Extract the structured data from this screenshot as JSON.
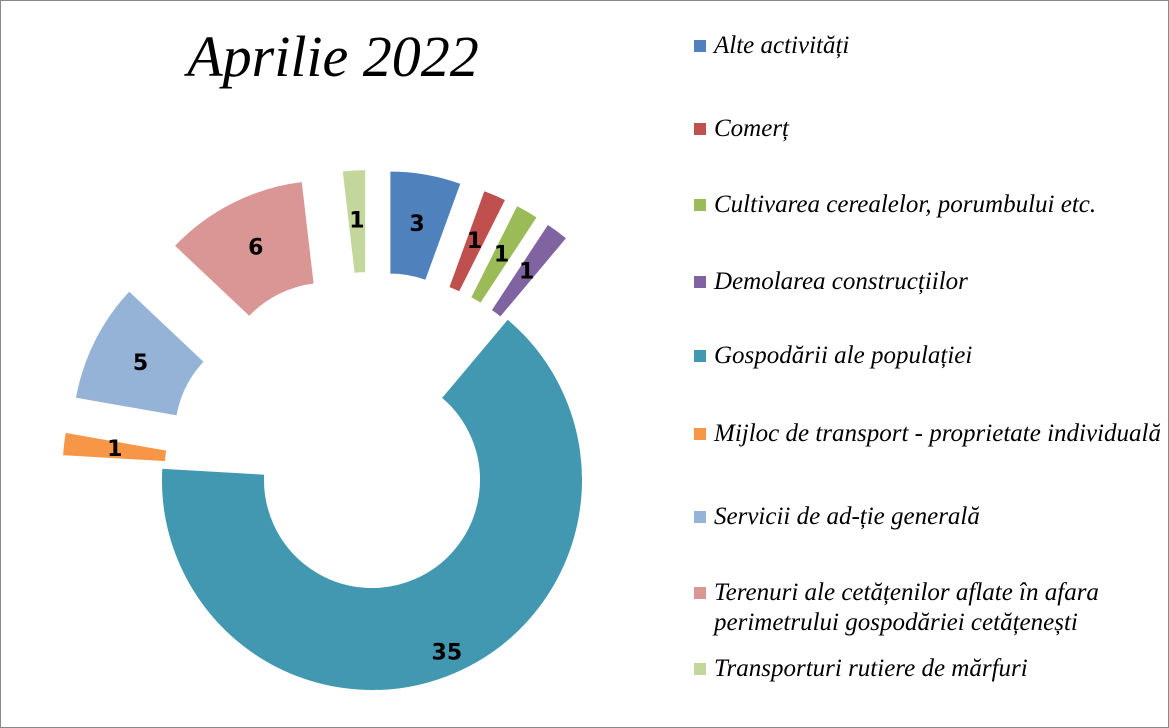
{
  "chart_data": {
    "type": "doughnut",
    "title": "Aprilie 2022",
    "categories": [
      "Alte activități",
      "Comerț",
      "Cultivarea cerealelor, porumbului etc.",
      "Demolarea construcțiilor",
      "Gospodării ale populației",
      "Mijloc de transport - proprietate individuală",
      "Servicii de ad-ție generală",
      "Terenuri ale cetățenilor aflate în afara perimetrului gospodăriei cetățenești",
      "Transporturi rutiere de mărfuri"
    ],
    "values": [
      3,
      1,
      1,
      1,
      35,
      1,
      5,
      6,
      1
    ],
    "colors": [
      "#4f81bd",
      "#c0504d",
      "#9bbb59",
      "#8064a2",
      "#4298b0",
      "#f79646",
      "#95b3d7",
      "#d99694",
      "#c3d69b"
    ],
    "legend": "right"
  }
}
